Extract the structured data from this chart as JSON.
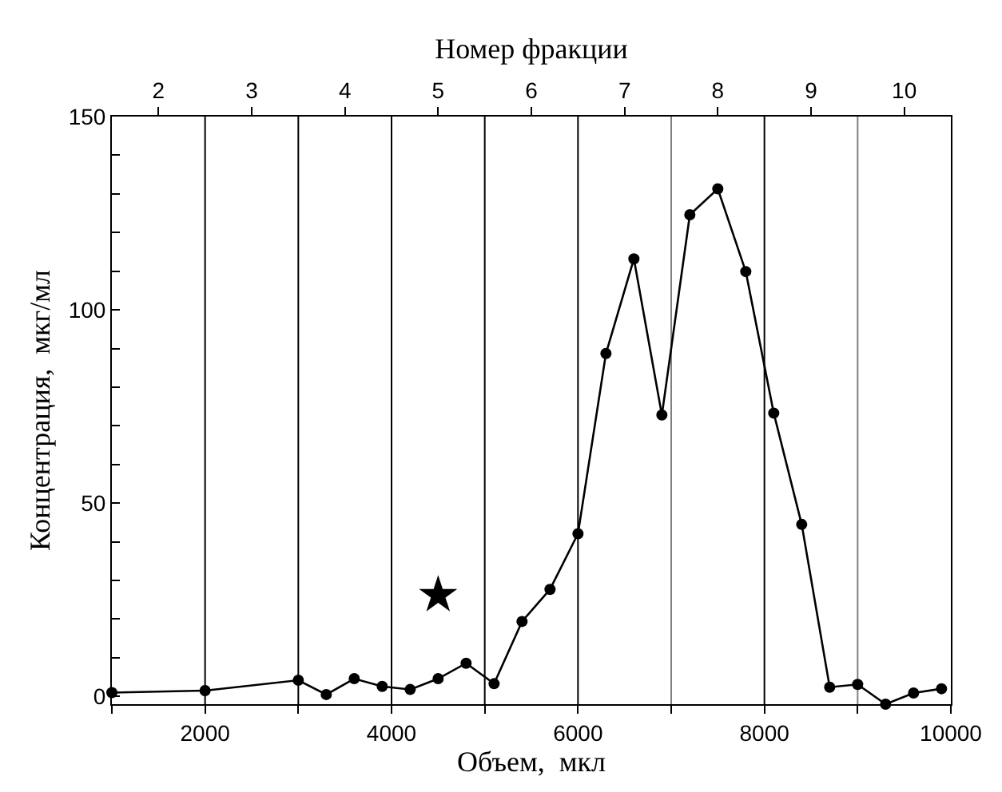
{
  "chart_data": {
    "type": "line",
    "xlabel": "Объем,  мкл",
    "ylabel": "Концентрация,  мкг/мл",
    "x2label": "Номер фракции",
    "xlim": [
      1000,
      10000
    ],
    "xticks": [
      {
        "value": 1000,
        "label": null
      },
      2000,
      {
        "value": 3000,
        "label": null
      },
      4000,
      {
        "value": 5000,
        "label": null
      },
      6000,
      {
        "value": 7000,
        "label": null
      },
      8000,
      {
        "value": 9000,
        "label": null
      },
      10000
    ],
    "x2lim": [
      1.5,
      10.5
    ],
    "x2ticks": [
      2,
      3,
      4,
      5,
      6,
      7,
      8,
      9,
      10
    ],
    "ylim": [
      -2,
      150
    ],
    "yticks": [
      0,
      {
        "value": 10,
        "label": null
      },
      {
        "value": 20,
        "label": null
      },
      {
        "value": 30,
        "label": null
      },
      {
        "value": 40,
        "label": null
      },
      50,
      {
        "value": 60,
        "label": null
      },
      {
        "value": 70,
        "label": null
      },
      {
        "value": 80,
        "label": null
      },
      {
        "value": 90,
        "label": null
      },
      100,
      {
        "value": 110,
        "label": null
      },
      {
        "value": 120,
        "label": null
      },
      {
        "value": 130,
        "label": null
      },
      {
        "value": 140,
        "label": null
      },
      150
    ],
    "grid": false,
    "series": [
      {
        "marker": "circle",
        "color": "#000000",
        "x": [
          1000,
          2000,
          3000,
          3300,
          3600,
          3900,
          4200,
          4500,
          4800,
          5100,
          5400,
          5700,
          6000,
          6300,
          6600,
          6900,
          7200,
          7500,
          7800,
          8100,
          8400,
          8700,
          9000,
          9300,
          9600,
          9900
        ],
        "values": [
          1,
          1.5,
          4.2,
          0.5,
          4.6,
          2.6,
          1.8,
          4.6,
          8.6,
          3.3,
          19.4,
          27.7,
          42.1,
          88.7,
          113.2,
          72.8,
          124.6,
          131.3,
          109.9,
          73.3,
          44.5,
          2.4,
          3.1,
          -2,
          0.9,
          2
        ]
      },
      {
        "type": "scatter",
        "marker": "star",
        "color": "#000000",
        "x": [
          4500
        ],
        "values": [
          26.2
        ]
      }
    ],
    "ref_lines": [
      {
        "axis": "x",
        "value": 2000,
        "color": "#000000"
      },
      {
        "axis": "x",
        "value": 3000,
        "color": "#000000"
      },
      {
        "axis": "x",
        "value": 4000,
        "color": "#000000"
      },
      {
        "axis": "x",
        "value": 5000,
        "color": "#000000"
      },
      {
        "axis": "x",
        "value": 6000,
        "color": "#000000"
      },
      {
        "axis": "x",
        "value": 7000,
        "color": "#808080"
      },
      {
        "axis": "x",
        "value": 8000,
        "color": "#000000"
      },
      {
        "axis": "x",
        "value": 9000,
        "color": "#808080"
      }
    ]
  }
}
